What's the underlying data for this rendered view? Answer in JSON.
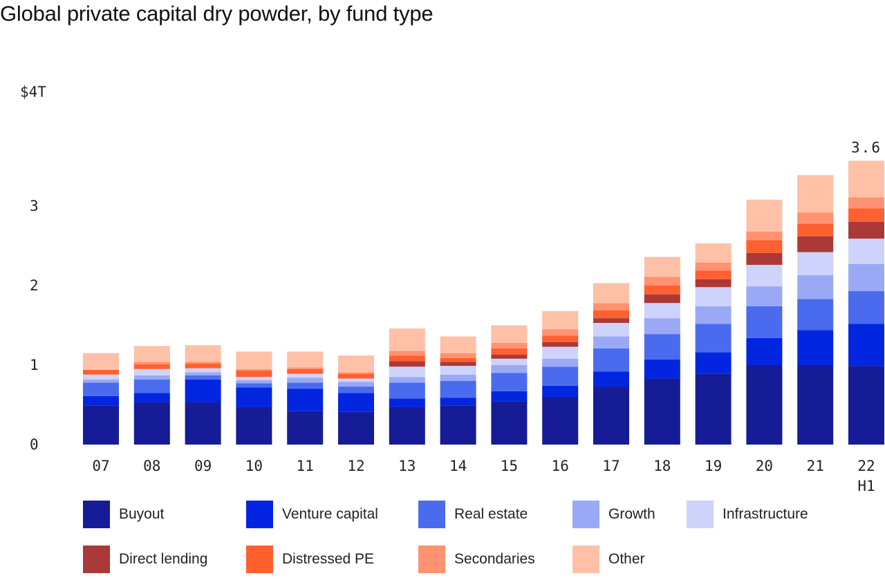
{
  "chart_data": {
    "type": "bar",
    "stacked": true,
    "title": "Global private capital dry powder, by fund type",
    "xlabel": "",
    "ylabel": "",
    "ylim": [
      0,
      4
    ],
    "y_ticks": [
      {
        "value": 0,
        "label": "0"
      },
      {
        "value": 1,
        "label": "1"
      },
      {
        "value": 2,
        "label": "2"
      },
      {
        "value": 3,
        "label": "3"
      },
      {
        "value": 4,
        "label": "$4T"
      }
    ],
    "categories": [
      "07",
      "08",
      "09",
      "10",
      "11",
      "12",
      "13",
      "14",
      "15",
      "16",
      "17",
      "18",
      "19",
      "20",
      "21",
      "22"
    ],
    "category_sublabels": [
      "",
      "",
      "",
      "",
      "",
      "",
      "",
      "",
      "",
      "",
      "",
      "",
      "",
      "",
      "",
      "H1"
    ],
    "grid": false,
    "legend_position": "bottom",
    "series": [
      {
        "name": "Buyout",
        "color": "#161b96",
        "values": [
          0.49,
          0.53,
          0.53,
          0.47,
          0.42,
          0.41,
          0.47,
          0.49,
          0.54,
          0.6,
          0.73,
          0.83,
          0.89,
          1.0,
          1.0,
          0.99
        ]
      },
      {
        "name": "Venture capital",
        "color": "#0226e0",
        "values": [
          0.12,
          0.12,
          0.29,
          0.25,
          0.28,
          0.24,
          0.11,
          0.1,
          0.13,
          0.14,
          0.19,
          0.24,
          0.27,
          0.34,
          0.44,
          0.53
        ]
      },
      {
        "name": "Real estate",
        "color": "#4b6bef",
        "values": [
          0.17,
          0.17,
          0.05,
          0.05,
          0.08,
          0.08,
          0.2,
          0.21,
          0.23,
          0.24,
          0.29,
          0.32,
          0.36,
          0.4,
          0.39,
          0.41
        ]
      },
      {
        "name": "Growth",
        "color": "#9aa9f6",
        "values": [
          0.04,
          0.05,
          0.04,
          0.04,
          0.06,
          0.06,
          0.07,
          0.08,
          0.1,
          0.1,
          0.15,
          0.2,
          0.22,
          0.25,
          0.3,
          0.34
        ]
      },
      {
        "name": "Infrastructure",
        "color": "#cdd3fa",
        "values": [
          0.06,
          0.08,
          0.05,
          0.04,
          0.05,
          0.04,
          0.13,
          0.11,
          0.08,
          0.15,
          0.17,
          0.19,
          0.24,
          0.27,
          0.29,
          0.32
        ]
      },
      {
        "name": "Direct lending",
        "color": "#ab3937",
        "values": [
          0.0,
          0.0,
          0.0,
          0.0,
          0.0,
          0.0,
          0.07,
          0.05,
          0.05,
          0.06,
          0.06,
          0.11,
          0.1,
          0.15,
          0.2,
          0.21
        ]
      },
      {
        "name": "Distressed PE",
        "color": "#ff6030",
        "values": [
          0.06,
          0.06,
          0.06,
          0.08,
          0.06,
          0.06,
          0.07,
          0.05,
          0.08,
          0.08,
          0.1,
          0.11,
          0.11,
          0.16,
          0.16,
          0.17
        ]
      },
      {
        "name": "Secondaries",
        "color": "#ff9270",
        "values": [
          0.0,
          0.03,
          0.02,
          0.02,
          0.02,
          0.02,
          0.06,
          0.06,
          0.07,
          0.08,
          0.09,
          0.11,
          0.1,
          0.11,
          0.14,
          0.14
        ]
      },
      {
        "name": "Other",
        "color": "#ffc0a8",
        "values": [
          0.21,
          0.2,
          0.21,
          0.22,
          0.2,
          0.21,
          0.28,
          0.21,
          0.22,
          0.23,
          0.25,
          0.25,
          0.24,
          0.4,
          0.47,
          0.46
        ]
      }
    ],
    "annotations": [
      {
        "category": "22",
        "text": "3.6"
      }
    ]
  }
}
